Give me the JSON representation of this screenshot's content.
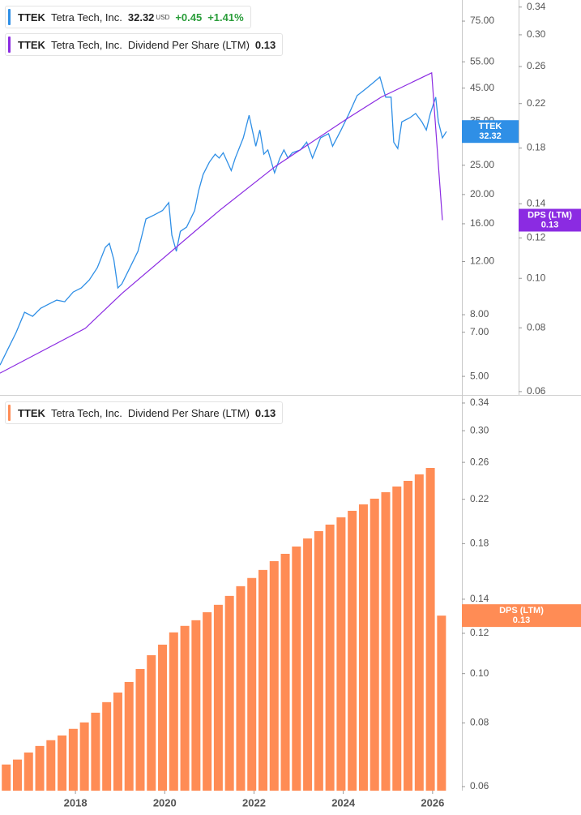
{
  "chart_data": [
    {
      "type": "line",
      "ticker": "TTEK",
      "company": "Tetra Tech, Inc.",
      "currency": "USD",
      "change": "+0.45",
      "change_percent": "+1.41%",
      "xlim": [
        2016.31,
        2026.62
      ],
      "ylim": [
        4.34,
        88.1
      ],
      "y2lim": [
        0.0591,
        0.351
      ],
      "log": true,
      "yticks": [
        {
          "value": 75,
          "label": "75.00"
        },
        {
          "value": 55,
          "label": "55.00"
        },
        {
          "value": 45,
          "label": "45.00"
        },
        {
          "value": 35,
          "label": "35.00"
        },
        {
          "value": 25,
          "label": "25.00"
        },
        {
          "value": 20,
          "label": "20.00"
        },
        {
          "value": 16,
          "label": "16.00"
        },
        {
          "value": 12,
          "label": "12.00"
        },
        {
          "value": 8,
          "label": "8.00"
        },
        {
          "value": 7,
          "label": "7.00"
        },
        {
          "value": 5,
          "label": "5.00"
        }
      ],
      "y2ticks": [
        0.34,
        {
          "value": 0.3,
          "label": "0.30"
        },
        0.26,
        0.22,
        0.18,
        0.14,
        0.12,
        {
          "value": 0.1,
          "label": "0.10"
        },
        0.08,
        0.06
      ],
      "series": [
        {
          "color": "#2f8fe6",
          "last": 32.32,
          "x": [
            2016.31,
            2016.49,
            2016.67,
            2016.86,
            2017.04,
            2017.22,
            2017.4,
            2017.58,
            2017.76,
            2017.95,
            2018.13,
            2018.31,
            2018.49,
            2018.67,
            2018.76,
            2018.86,
            2018.95,
            2019.04,
            2019.22,
            2019.4,
            2019.49,
            2019.58,
            2019.76,
            2019.95,
            2020.09,
            2020.16,
            2020.26,
            2020.35,
            2020.49,
            2020.67,
            2020.76,
            2020.86,
            2021.0,
            2021.13,
            2021.22,
            2021.31,
            2021.49,
            2021.58,
            2021.76,
            2021.89,
            2022.04,
            2022.13,
            2022.22,
            2022.31,
            2022.46,
            2022.58,
            2022.67,
            2022.76,
            2022.86,
            2023.04,
            2023.18,
            2023.31,
            2023.49,
            2023.67,
            2023.76,
            2023.95,
            2024.13,
            2024.31,
            2024.49,
            2024.67,
            2024.82,
            2024.95,
            2025.07,
            2025.13,
            2025.22,
            2025.31,
            2025.49,
            2025.62,
            2025.76,
            2025.86,
            2025.95,
            2026.07,
            2026.13,
            2026.22,
            2026.31
          ],
          "values": [
            5.45,
            6.17,
            6.98,
            8.15,
            7.9,
            8.4,
            8.67,
            8.94,
            8.83,
            9.51,
            9.81,
            10.43,
            11.45,
            13.37,
            13.78,
            12.17,
            9.81,
            10.12,
            11.45,
            12.97,
            14.66,
            16.6,
            17.1,
            17.7,
            18.8,
            14.66,
            12.97,
            15.1,
            15.6,
            17.7,
            20.6,
            23.3,
            25.6,
            27.2,
            26.4,
            27.5,
            24.0,
            26.4,
            30.8,
            36.6,
            28.9,
            32.7,
            27.2,
            28.1,
            23.6,
            26.4,
            28.1,
            26.4,
            27.5,
            28.1,
            29.8,
            26.4,
            30.8,
            31.8,
            28.9,
            32.7,
            37.1,
            42.5,
            44.6,
            46.9,
            49.0,
            42.0,
            42.0,
            29.8,
            28.4,
            34.8,
            35.9,
            37.1,
            34.8,
            32.7,
            37.1,
            42.0,
            34.8,
            30.8,
            32.32
          ]
        },
        {
          "name": "Dividend Per Share (LTM)",
          "tag_label": "DPS (LTM)",
          "color": "#8b2be2",
          "axis": "y2",
          "last": 0.13,
          "x": [
            2016.31,
            2018.22,
            2019.04,
            2021.22,
            2022.49,
            2024.13,
            2024.85,
            2025.98,
            2026.22
          ],
          "values": [
            0.0652,
            0.0798,
            0.0934,
            0.1357,
            0.166,
            0.2067,
            0.2265,
            0.2527,
            0.13
          ]
        }
      ]
    },
    {
      "type": "bar",
      "ticker": "TTEK",
      "company": "Tetra Tech, Inc.",
      "xlim": [
        2016.31,
        2026.62
      ],
      "ylim": [
        0.0589,
        0.3488
      ],
      "log": true,
      "xticks": [
        2018,
        2020,
        2022,
        2024,
        2026
      ],
      "yticks": [
        0.34,
        {
          "value": 0.3,
          "label": "0.30"
        },
        0.26,
        0.22,
        0.18,
        0.14,
        0.12,
        {
          "value": 0.1,
          "label": "0.10"
        },
        0.08,
        0.06
      ],
      "series": [
        {
          "name": "Dividend Per Share (LTM)",
          "tag_label": "DPS (LTM)",
          "color": "#ff8c55",
          "last": 0.13,
          "x": [
            2016.45,
            2016.7,
            2016.95,
            2017.2,
            2017.45,
            2017.7,
            2017.95,
            2018.2,
            2018.45,
            2018.7,
            2018.95,
            2019.2,
            2019.45,
            2019.7,
            2019.95,
            2020.2,
            2020.45,
            2020.7,
            2020.95,
            2021.2,
            2021.45,
            2021.7,
            2021.95,
            2022.2,
            2022.45,
            2022.7,
            2022.95,
            2023.2,
            2023.45,
            2023.7,
            2023.95,
            2024.2,
            2024.45,
            2024.7,
            2024.95,
            2025.2,
            2025.45,
            2025.7,
            2025.95,
            2026.2
          ],
          "values": [
            0.0663,
            0.0678,
            0.07,
            0.0721,
            0.074,
            0.0756,
            0.0779,
            0.0802,
            0.0838,
            0.0879,
            0.0918,
            0.0963,
            0.1021,
            0.1087,
            0.114,
            0.1205,
            0.1241,
            0.1273,
            0.132,
            0.1365,
            0.1421,
            0.1485,
            0.1541,
            0.1598,
            0.1663,
            0.1719,
            0.1777,
            0.1843,
            0.1905,
            0.1962,
            0.2028,
            0.2088,
            0.215,
            0.2206,
            0.2272,
            0.2331,
            0.2391,
            0.2462,
            0.2535,
            0.13
          ]
        }
      ]
    }
  ]
}
